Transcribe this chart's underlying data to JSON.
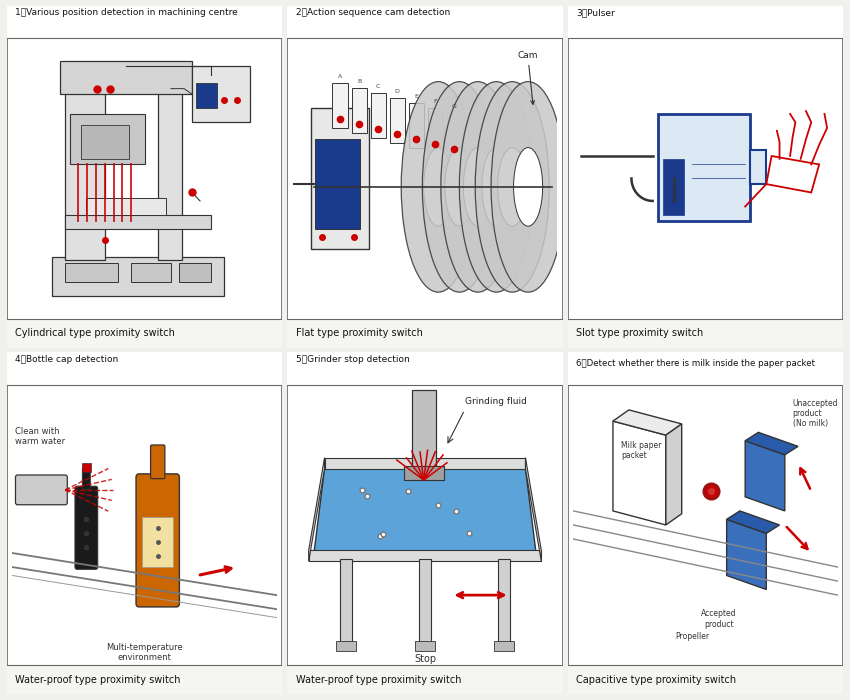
{
  "bg_color": "#f0f0ec",
  "panel_bg": "#ffffff",
  "border_color": "#666666",
  "title_bg": "#ffffff",
  "panels": [
    {
      "num": "1",
      "title": "Various position detection in machining centre",
      "caption": "Cylindrical type proximity switch",
      "col": 0,
      "row": 0
    },
    {
      "num": "2",
      "title": "Action sequence cam detection",
      "caption": "Flat type proximity switch",
      "col": 1,
      "row": 0
    },
    {
      "num": "3",
      "title": "Pulser",
      "caption": "Slot type proximity switch",
      "col": 2,
      "row": 0
    },
    {
      "num": "4",
      "title": "Bottle cap detection",
      "caption": "Water-proof type proximity switch",
      "col": 0,
      "row": 1
    },
    {
      "num": "5",
      "title": "Grinder stop detection",
      "caption": "Water-proof type proximity switch",
      "col": 1,
      "row": 1
    },
    {
      "num": "6",
      "title": "Detect whether there is milk inside the paper packet",
      "caption": "Capacitive type proximity switch",
      "col": 2,
      "row": 1
    }
  ],
  "red": "#cc0000",
  "blue": "#1a3a8c",
  "light_blue": "#66aadd",
  "gray": "#aaaaaa",
  "dark_gray": "#555555",
  "orange": "#cc6600",
  "line_color": "#333333"
}
